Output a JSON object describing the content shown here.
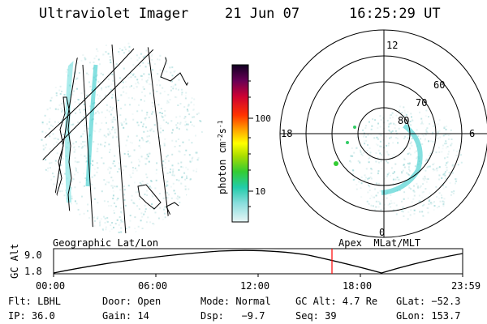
{
  "header": {
    "title": "Ultraviolet Imager",
    "date": "21 Jun 07",
    "time": "16:25:29 UT"
  },
  "colorbar": {
    "label": "photon cm",
    "label_sup1": "-2",
    "label_mid": "s",
    "label_sup2": "-1",
    "ticks": [
      "100",
      "10"
    ]
  },
  "polar": {
    "mlt_top": "12",
    "mlt_left": "18",
    "mlt_right": "6",
    "mlt_bottom": "0",
    "lat_labels": [
      "60",
      "70",
      "80"
    ]
  },
  "left_panel_caption": "Geographic Lat/Lon",
  "right_panel_caption": "Apex  MLat/MLT",
  "timeline": {
    "ylabel": "GC Alt",
    "y_ticks": [
      "9.0",
      "1.8"
    ],
    "x_ticks": [
      "00:00",
      "06:00",
      "12:00",
      "18:00",
      "23:59"
    ]
  },
  "info": {
    "flt": "Flt: LBHL",
    "door": "Door: Open",
    "mode": "Mode: Normal",
    "gcalt": "GC Alt: 4.7 Re",
    "glat": "GLat: −52.3",
    "ip": "IP: 36.0",
    "gain": "Gain: 14",
    "dsp": "Dsp:   −9.7",
    "seq": "Seq: 39",
    "glon": "GLon: 153.7"
  }
}
